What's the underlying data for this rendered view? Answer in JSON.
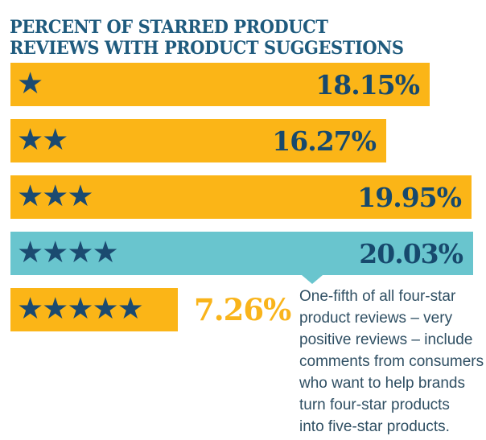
{
  "title": {
    "line1": "PERCENT OF STARRED PRODUCT",
    "line2": "REVIEWS WITH PRODUCT SUGGESTIONS"
  },
  "chart_data": {
    "type": "bar",
    "orientation": "horizontal",
    "title": "PERCENT OF STARRED PRODUCT REVIEWS WITH PRODUCT SUGGESTIONS",
    "xlabel": "",
    "ylabel": "",
    "xlim": [
      0,
      20.6
    ],
    "grid": false,
    "legend": false,
    "categories": [
      "1 star",
      "2 stars",
      "3 stars",
      "4 stars",
      "5 stars"
    ],
    "values": [
      18.15,
      16.27,
      19.95,
      20.03,
      7.26
    ],
    "bars": [
      {
        "stars": 1,
        "value": 18.15,
        "label": "18.15%",
        "highlight": false,
        "label_outside": false,
        "pointer": false
      },
      {
        "stars": 2,
        "value": 16.27,
        "label": "16.27%",
        "highlight": false,
        "label_outside": false,
        "pointer": false
      },
      {
        "stars": 3,
        "value": 19.95,
        "label": "19.95%",
        "highlight": false,
        "label_outside": false,
        "pointer": false
      },
      {
        "stars": 4,
        "value": 20.03,
        "label": "20.03%",
        "highlight": true,
        "label_outside": false,
        "pointer": true
      },
      {
        "stars": 5,
        "value": 7.26,
        "label": "7.26%",
        "highlight": false,
        "label_outside": true,
        "pointer": false
      }
    ]
  },
  "annotation": {
    "lines": [
      "One-fifth of all four-star",
      "product reviews – very",
      "positive reviews – include",
      "comments from consumers",
      "who want to help brands",
      "turn four-star products",
      "into five-star products."
    ]
  },
  "icons": {
    "star": "★"
  },
  "colors": {
    "background": "#FFFFFF",
    "bar_yellow": "#FBB517",
    "bar_teal": "#69C5CE",
    "star_navy": "#1B4A70",
    "title_navy": "#1F5B7E",
    "value_navy": "#17496D",
    "outside_label_amber": "#F9B41B",
    "annotation_slate": "#2F4F63"
  }
}
